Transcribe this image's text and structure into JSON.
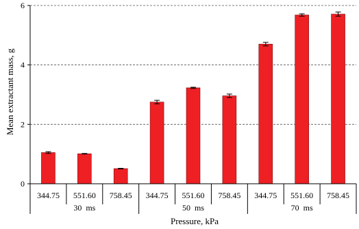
{
  "chart_data": {
    "type": "bar",
    "title": "",
    "xlabel": "Pressure, kPa",
    "ylabel": "Mean extractant mass, g",
    "ylim": [
      0,
      6
    ],
    "yticks": [
      0,
      2,
      4,
      6
    ],
    "grid": "dashed horizontal at 2, 4",
    "legend": "none",
    "bar_color": "#ee2024",
    "groups": [
      {
        "label": "30  ms",
        "categories": [
          "344.75",
          "551.60",
          "758.45"
        ],
        "values": [
          1.05,
          1.01,
          0.51
        ],
        "errors": [
          0.03,
          0.01,
          0.01
        ]
      },
      {
        "label": "50  ms",
        "categories": [
          "344.75",
          "551.60",
          "758.45"
        ],
        "values": [
          2.75,
          3.23,
          2.96
        ],
        "errors": [
          0.06,
          0.02,
          0.06
        ]
      },
      {
        "label": "70  ms",
        "categories": [
          "344.75",
          "551.60",
          "758.45"
        ],
        "values": [
          4.7,
          5.68,
          5.71
        ],
        "errors": [
          0.06,
          0.04,
          0.07
        ]
      }
    ]
  }
}
